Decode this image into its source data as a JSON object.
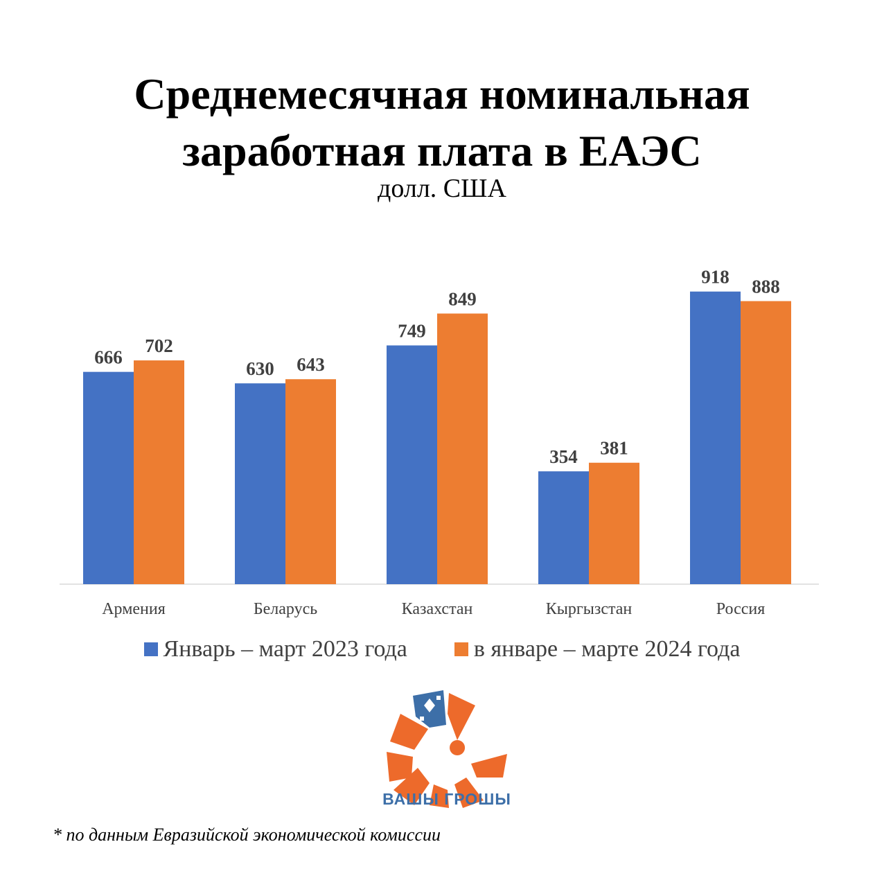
{
  "chart_data": {
    "type": "bar",
    "title": "Среднемесячная номинальная заработная плата в ЕАЭС",
    "title_lines": [
      "Среднемесячная номинальная",
      "заработная плата в ЕАЭС"
    ],
    "subtitle": "долл. США",
    "categories": [
      "Армения",
      "Беларусь",
      "Казахстан",
      "Кыргызстан",
      "Россия"
    ],
    "series": [
      {
        "name": "Январь – март 2023 года",
        "values": [
          666,
          630,
          749,
          354,
          918
        ],
        "color": "#4472c4"
      },
      {
        "name": "в январе – марте 2024 года",
        "values": [
          702,
          643,
          849,
          381,
          888
        ],
        "color": "#ed7d31"
      }
    ],
    "ylim": [
      0,
      1000
    ],
    "grid": false,
    "legend": "bottom",
    "data_labels": true
  },
  "logo": {
    "text": "ВАШЫ ГРОШЫ",
    "color": "#ed6a2b",
    "accent": "#3d6fa8"
  },
  "footnote": "* по данным Евразийской экономической комиссии"
}
